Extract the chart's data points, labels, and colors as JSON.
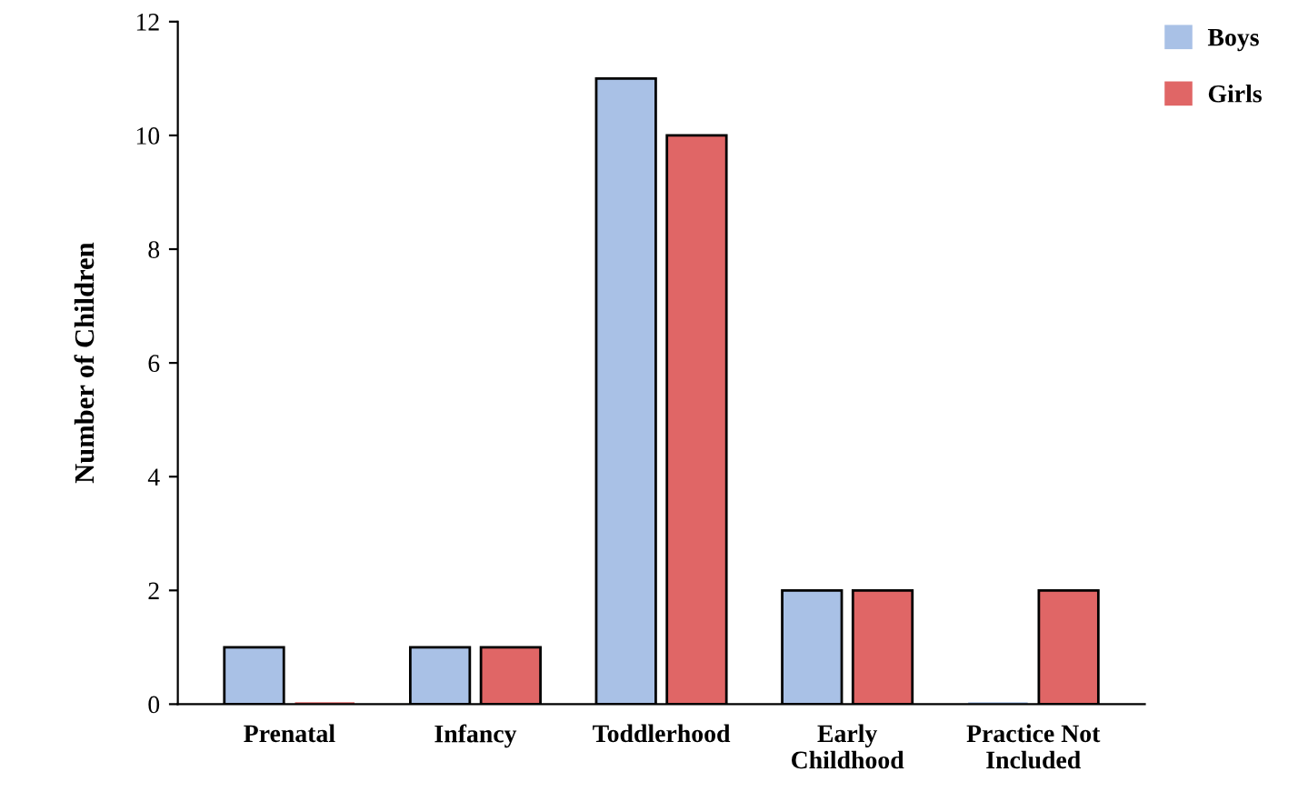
{
  "chart_data": {
    "type": "bar",
    "ylabel": "Number of Children",
    "categories": [
      "Prenatal",
      "Infancy",
      "Toddlerhood",
      "Early\nChildhood",
      "Practice Not\nIncluded"
    ],
    "series": [
      {
        "name": "Boys",
        "color": "#a9c1e6",
        "values": [
          1,
          1,
          11,
          2,
          0
        ]
      },
      {
        "name": "Girls",
        "color": "#e06666",
        "values": [
          0,
          1,
          10,
          2,
          2
        ]
      }
    ],
    "ylim": [
      0,
      12
    ],
    "yticks": [
      0,
      2,
      4,
      6,
      8,
      10,
      12
    ],
    "grid": false,
    "legend": "top right"
  }
}
